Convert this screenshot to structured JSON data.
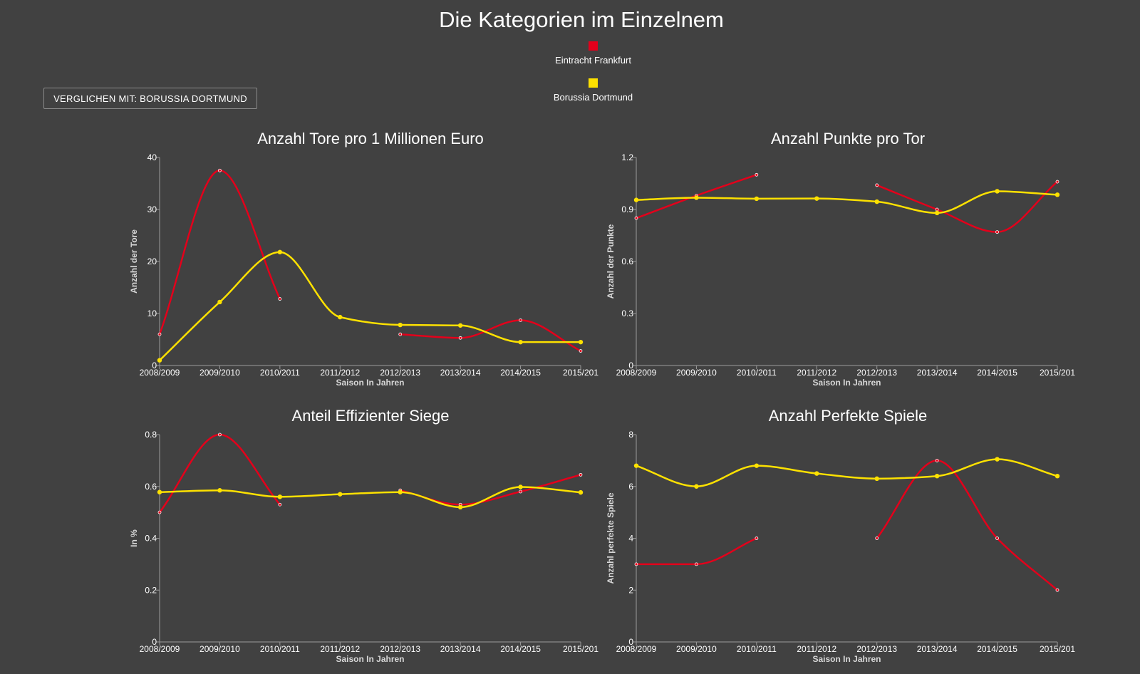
{
  "page": {
    "title": "Die Kategorien im Einzelnem",
    "compare_button": "VERGLICHEN MIT: BORUSSIA DORTMUND"
  },
  "legend": [
    {
      "label": "Eintracht Frankfurt",
      "color": "#e3001b"
    },
    {
      "label": "Borussia Dortmund",
      "color": "#fde100"
    }
  ],
  "chart_data": [
    {
      "type": "line",
      "title": "Anzahl Tore pro 1 Millionen Euro",
      "xlabel": "Saison In Jahren",
      "ylabel": "Anzahl der Tore",
      "ylim": [
        0,
        40
      ],
      "yticks": [
        "0",
        "10",
        "20",
        "30",
        "40"
      ],
      "categories": [
        "2008/2009",
        "2009/2010",
        "2010/2011",
        "2011/2012",
        "2012/2013",
        "2013/2014",
        "2014/2015",
        "2015/201"
      ],
      "series": [
        {
          "name": "Eintracht Frankfurt",
          "color": "#e3001b",
          "values": [
            6,
            37.5,
            12.8,
            null,
            6,
            5.3,
            8.7,
            2.8
          ]
        },
        {
          "name": "Borussia Dortmund",
          "color": "#fde100",
          "values": [
            1,
            12.2,
            21.8,
            9.3,
            7.8,
            7.7,
            4.5,
            4.5
          ]
        }
      ]
    },
    {
      "type": "line",
      "title": "Anzahl Punkte pro Tor",
      "xlabel": "Saison In Jahren",
      "ylabel": "Anzahl der Punkte",
      "ylim": [
        0,
        1.2
      ],
      "yticks": [
        "0",
        "0.3",
        "0.6",
        "0.9",
        "1.2"
      ],
      "categories": [
        "2008/2009",
        "2009/2010",
        "2010/2011",
        "2011/2012",
        "2012/2013",
        "2013/2014",
        "2014/2015",
        "2015/201"
      ],
      "series": [
        {
          "name": "Eintracht Frankfurt",
          "color": "#e3001b",
          "values": [
            0.85,
            0.98,
            1.1,
            null,
            1.04,
            0.9,
            0.77,
            1.06
          ]
        },
        {
          "name": "Borussia Dortmund",
          "color": "#fde100",
          "values": [
            0.955,
            0.968,
            0.962,
            0.963,
            0.945,
            0.88,
            1.005,
            0.985
          ]
        }
      ]
    },
    {
      "type": "line",
      "title": "Anteil Effizienter Siege",
      "xlabel": "Saison In Jahren",
      "ylabel": "In %",
      "ylim": [
        0,
        0.8
      ],
      "yticks": [
        "0",
        "0.2",
        "0.4",
        "0.6",
        "0.8"
      ],
      "categories": [
        "2008/2009",
        "2009/2010",
        "2010/2011",
        "2011/2012",
        "2012/2013",
        "2013/2014",
        "2014/2015",
        "2015/201"
      ],
      "series": [
        {
          "name": "Eintracht Frankfurt",
          "color": "#e3001b",
          "values": [
            0.5,
            0.8,
            0.53,
            null,
            0.585,
            0.53,
            0.58,
            0.645
          ]
        },
        {
          "name": "Borussia Dortmund",
          "color": "#fde100",
          "values": [
            0.578,
            0.585,
            0.56,
            0.57,
            0.578,
            0.52,
            0.598,
            0.577
          ]
        }
      ]
    },
    {
      "type": "line",
      "title": "Anzahl Perfekte Spiele",
      "xlabel": "Saison In Jahren",
      "ylabel": "Anzahl perfekte Spiele",
      "ylim": [
        0,
        8
      ],
      "yticks": [
        "0",
        "2",
        "4",
        "6",
        "8"
      ],
      "categories": [
        "2008/2009",
        "2009/2010",
        "2010/2011",
        "2011/2012",
        "2012/2013",
        "2013/2014",
        "2014/2015",
        "2015/201"
      ],
      "series": [
        {
          "name": "Eintracht Frankfurt",
          "color": "#e3001b",
          "values": [
            3,
            3,
            4,
            null,
            4,
            7,
            4,
            2
          ]
        },
        {
          "name": "Borussia Dortmund",
          "color": "#fde100",
          "values": [
            6.8,
            6,
            6.8,
            6.5,
            6.3,
            6.4,
            7.05,
            6.4
          ]
        }
      ]
    }
  ]
}
